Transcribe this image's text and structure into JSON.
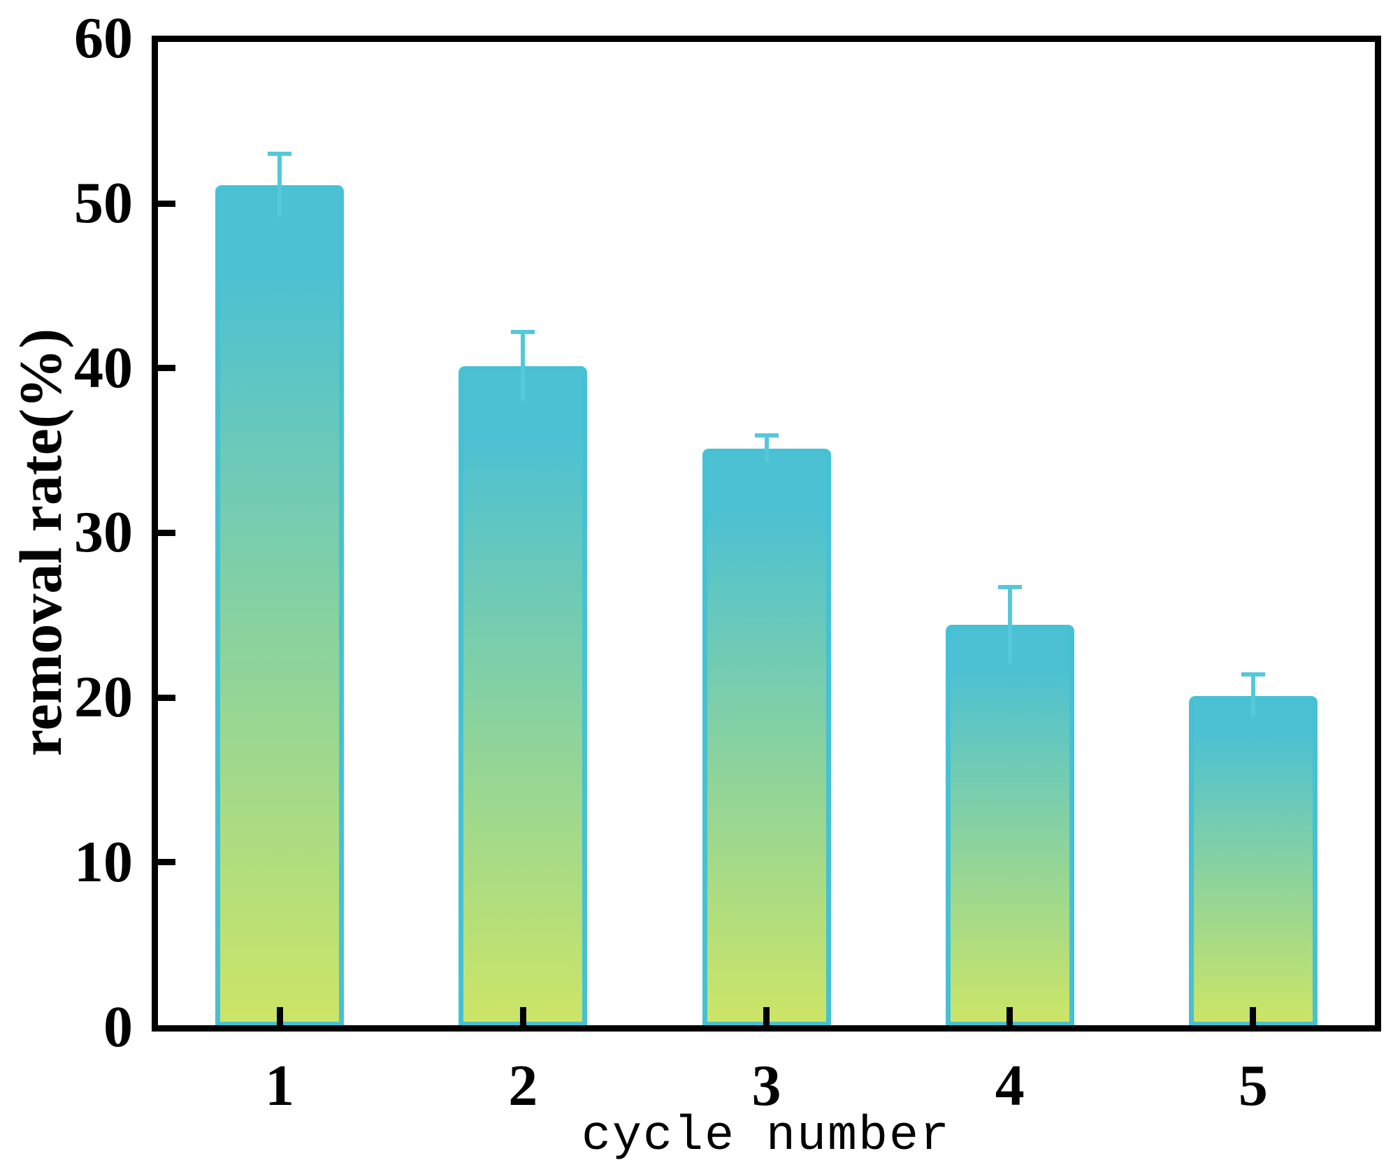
{
  "figure": {
    "background": "#ffffff"
  },
  "chart_data": {
    "type": "bar",
    "title": "",
    "xlabel": "cycle number",
    "ylabel": "removal rate(%)",
    "categories": [
      "1",
      "2",
      "3",
      "4",
      "5"
    ],
    "values": [
      51.1,
      40.1,
      35.1,
      24.4,
      20.1
    ],
    "error_plus": [
      1.9,
      2.1,
      0.8,
      2.3,
      1.3
    ],
    "error_minus": [
      1.9,
      2.1,
      0.8,
      2.3,
      1.3
    ],
    "ylim": [
      0,
      60
    ],
    "yticks": [
      "0",
      "10",
      "20",
      "30",
      "40",
      "50",
      "60"
    ],
    "ytick_values": [
      0,
      10,
      20,
      30,
      40,
      50,
      60
    ],
    "grid": false,
    "legend": false,
    "colors": {
      "bar_gradient_top": "#4cc1d3",
      "bar_gradient_bottom": "#cce566",
      "bar_stroke": "#46c1d4",
      "error_bar": "#55c8da",
      "axis": "#000000",
      "text": "#000000"
    }
  }
}
